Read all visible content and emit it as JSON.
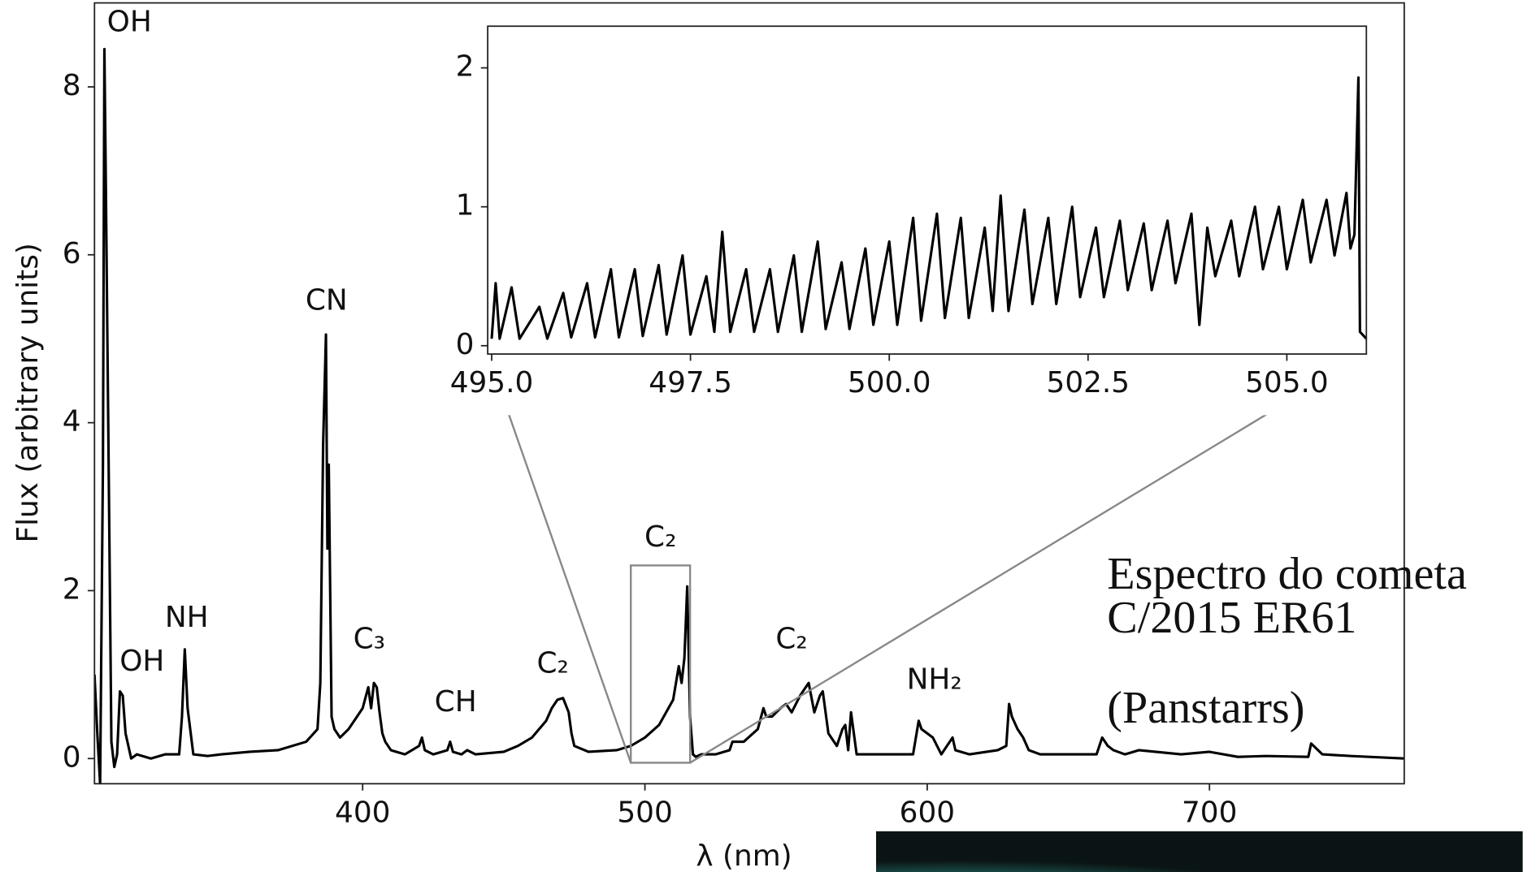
{
  "chart_data": [
    {
      "type": "line",
      "color": "#000000",
      "xlabel": "λ (nm)",
      "ylabel": "Flux (arbitrary units)",
      "xlim": [
        305,
        769
      ],
      "ylim": [
        -0.3,
        9.0
      ],
      "xticks": [
        400,
        500,
        600,
        700
      ],
      "yticks": [
        0,
        2,
        4,
        6,
        8
      ],
      "annotations": [
        "OH",
        "OH",
        "NH",
        "CN",
        "C₃",
        "CH",
        "C₂",
        "C₂",
        "C₂",
        "NH₂"
      ],
      "zoom_box": {
        "x": [
          495,
          516
        ],
        "y": [
          -0.05,
          2.3
        ]
      },
      "x": [
        305,
        306,
        307,
        308,
        308.5,
        309,
        310,
        311,
        312,
        313,
        314,
        315,
        316,
        318,
        320,
        325,
        330,
        335,
        336,
        337,
        338,
        340,
        345,
        350,
        360,
        370,
        380,
        384,
        385,
        386,
        387,
        387.5,
        388,
        389,
        390,
        392,
        395,
        398,
        400,
        402,
        403,
        404,
        405,
        406,
        407,
        408,
        410,
        415,
        420,
        421,
        422,
        425,
        430,
        431,
        432,
        435,
        437,
        440,
        450,
        455,
        460,
        465,
        467,
        469,
        471,
        473,
        474,
        475,
        480,
        490,
        495,
        500,
        505,
        510,
        512,
        513,
        514,
        515,
        516,
        517,
        518,
        520,
        525,
        530,
        531,
        535,
        540,
        542,
        543,
        545,
        548,
        550,
        552,
        555,
        557,
        558,
        560,
        562,
        563,
        565,
        568,
        570,
        571,
        572,
        573,
        575,
        580,
        590,
        595,
        597,
        598,
        600,
        602,
        605,
        609,
        610,
        615,
        625,
        628,
        629,
        630,
        632,
        634,
        636,
        640,
        650,
        660,
        662,
        664,
        666,
        670,
        675,
        690,
        700,
        710,
        720,
        735,
        736,
        740,
        750,
        769
      ],
      "values": [
        1.0,
        0.3,
        -0.3,
        3.5,
        8.45,
        6.95,
        3.6,
        0.2,
        -0.1,
        0.05,
        0.8,
        0.75,
        0.3,
        0.0,
        0.05,
        0.0,
        0.05,
        0.05,
        0.5,
        1.3,
        0.6,
        0.05,
        0.03,
        0.05,
        0.08,
        0.1,
        0.2,
        0.35,
        0.9,
        3.75,
        5.05,
        2.5,
        3.5,
        0.5,
        0.35,
        0.25,
        0.35,
        0.5,
        0.6,
        0.85,
        0.6,
        0.9,
        0.85,
        0.55,
        0.3,
        0.2,
        0.1,
        0.05,
        0.15,
        0.25,
        0.1,
        0.05,
        0.1,
        0.2,
        0.08,
        0.05,
        0.1,
        0.05,
        0.08,
        0.15,
        0.25,
        0.45,
        0.6,
        0.7,
        0.72,
        0.55,
        0.3,
        0.15,
        0.08,
        0.1,
        0.15,
        0.25,
        0.4,
        0.7,
        1.1,
        0.9,
        1.2,
        2.05,
        0.5,
        0.05,
        0.02,
        0.05,
        0.05,
        0.1,
        0.2,
        0.2,
        0.35,
        0.6,
        0.5,
        0.5,
        0.6,
        0.65,
        0.55,
        0.75,
        0.85,
        0.9,
        0.55,
        0.75,
        0.8,
        0.3,
        0.15,
        0.35,
        0.4,
        0.1,
        0.55,
        0.05,
        0.05,
        0.05,
        0.05,
        0.45,
        0.35,
        0.3,
        0.25,
        0.05,
        0.25,
        0.1,
        0.05,
        0.1,
        0.15,
        0.65,
        0.5,
        0.35,
        0.25,
        0.1,
        0.05,
        0.05,
        0.05,
        0.25,
        0.15,
        0.1,
        0.05,
        0.1,
        0.05,
        0.08,
        0.02,
        0.03,
        0.02,
        0.18,
        0.05,
        0.03,
        0.0
      ]
    },
    {
      "type": "line",
      "color": "#000000",
      "xlim": [
        494.95,
        506.0
      ],
      "ylim": [
        -0.06,
        2.3
      ],
      "xticks": [
        {
          "value": 495,
          "label": "495.0"
        },
        {
          "value": 497.5,
          "label": "497.5"
        },
        {
          "value": 500,
          "label": "500.0"
        },
        {
          "value": 502.5,
          "label": "502.5"
        },
        {
          "value": 505,
          "label": "505.0"
        }
      ],
      "yticks": [
        0,
        1,
        2
      ],
      "x": [
        495.0,
        495.05,
        495.1,
        495.25,
        495.35,
        495.6,
        495.7,
        495.9,
        496.0,
        496.2,
        496.3,
        496.5,
        496.6,
        496.8,
        496.9,
        497.1,
        497.2,
        497.4,
        497.5,
        497.7,
        497.8,
        497.9,
        498.0,
        498.2,
        498.3,
        498.5,
        498.6,
        498.8,
        498.9,
        499.1,
        499.2,
        499.4,
        499.5,
        499.7,
        499.8,
        500.0,
        500.1,
        500.3,
        500.4,
        500.6,
        500.7,
        500.9,
        501.0,
        501.2,
        501.3,
        501.4,
        501.5,
        501.7,
        501.8,
        502.0,
        502.1,
        502.3,
        502.4,
        502.6,
        502.7,
        502.9,
        503.0,
        503.2,
        503.3,
        503.5,
        503.6,
        503.8,
        503.9,
        504.0,
        504.1,
        504.3,
        504.4,
        504.6,
        504.7,
        504.9,
        505.0,
        505.2,
        505.3,
        505.5,
        505.6,
        505.75,
        505.8,
        505.85,
        505.9,
        505.92,
        506.0
      ],
      "values": [
        0.05,
        0.45,
        0.05,
        0.42,
        0.05,
        0.28,
        0.05,
        0.38,
        0.06,
        0.45,
        0.06,
        0.55,
        0.06,
        0.55,
        0.07,
        0.58,
        0.08,
        0.65,
        0.08,
        0.5,
        0.1,
        0.82,
        0.1,
        0.55,
        0.1,
        0.55,
        0.1,
        0.65,
        0.1,
        0.75,
        0.12,
        0.6,
        0.12,
        0.7,
        0.15,
        0.75,
        0.15,
        0.92,
        0.18,
        0.95,
        0.2,
        0.92,
        0.2,
        0.85,
        0.25,
        1.08,
        0.25,
        0.98,
        0.3,
        0.92,
        0.3,
        1.0,
        0.35,
        0.85,
        0.35,
        0.9,
        0.4,
        0.88,
        0.4,
        0.9,
        0.45,
        0.95,
        0.15,
        0.85,
        0.5,
        0.9,
        0.5,
        1.0,
        0.55,
        1.0,
        0.55,
        1.05,
        0.6,
        1.05,
        0.65,
        1.1,
        0.7,
        0.8,
        1.93,
        0.1,
        0.05
      ]
    }
  ],
  "caption": [
    "Espectro do cometa",
    "C/2015 ER61",
    "(Panstarrs)"
  ]
}
